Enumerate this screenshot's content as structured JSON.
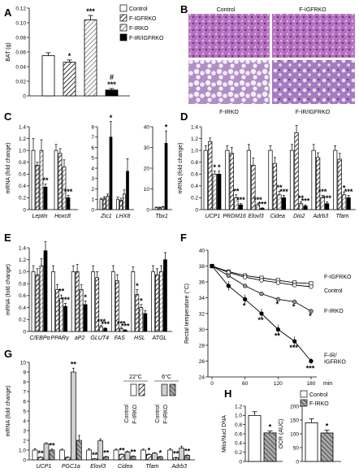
{
  "panel_letters": [
    "A",
    "B",
    "C",
    "D",
    "E",
    "F",
    "G",
    "H"
  ],
  "panel_b_labels": {
    "tl": "Control",
    "tr": "F-IGFRKO",
    "bl": "F-IRKO",
    "br": "F-IR/IGFRKO"
  },
  "chart_data": [
    {
      "id": "A",
      "type": "bar",
      "ylabel": "BAT (g)",
      "ylim": [
        0,
        0.12
      ],
      "yticks": [
        "0",
        "0.02",
        "0.04",
        "0.06",
        "0.08",
        "0.10",
        "0.12"
      ],
      "categories": [
        "Control",
        "F-IGFRKO",
        "F-IRKO",
        "F-IR/IGFRKO"
      ],
      "values": [
        0.055,
        0.046,
        0.104,
        0.008
      ],
      "errors": [
        0.004,
        0.003,
        0.006,
        0.002
      ],
      "annotations": [
        "",
        "*",
        "***",
        "#\n***"
      ],
      "legend": [
        "Control",
        "F-IGFRKO",
        "F-IRKO",
        "F-IR/IGFRKO"
      ]
    },
    {
      "id": "C",
      "type": "bar",
      "ylabel": "mRNA (fold change)",
      "subplots": [
        {
          "ylim": [
            0,
            1.4
          ],
          "yticks": [
            "0",
            "0.2",
            "0.4",
            "0.6",
            "0.8",
            "1.0",
            "1.2",
            "1.4"
          ],
          "categories": [
            "Leptin",
            "Hoxc8"
          ],
          "values": [
            [
              1.0,
              0.75,
              1.0,
              0.38
            ],
            [
              1.0,
              0.95,
              0.72,
              0.2
            ]
          ],
          "errors": [
            [
              0.2,
              0.05,
              0.18,
              0.05
            ],
            [
              0.1,
              0.08,
              0.12,
              0.04
            ]
          ],
          "stars": [
            [
              "",
              "",
              "",
              "**"
            ],
            [
              "",
              "",
              "",
              "***"
            ]
          ]
        },
        {
          "ylim": [
            0,
            8
          ],
          "yticks": [
            "0",
            "1",
            "2",
            "3",
            "4",
            "5",
            "6",
            "7",
            "8"
          ],
          "categories": [
            "Zic1",
            "LHX8"
          ],
          "values": [
            [
              1.0,
              1.1,
              1.3,
              7.0
            ],
            [
              1.0,
              0.9,
              1.5,
              3.7
            ]
          ],
          "errors": [
            [
              0.1,
              0.15,
              0.2,
              1.5
            ],
            [
              0.2,
              0.2,
              0.4,
              1.2
            ]
          ],
          "stars": [
            [
              "",
              "",
              "",
              "*"
            ],
            [
              "",
              "",
              "",
              ""
            ]
          ]
        },
        {
          "ylim": [
            0,
            40
          ],
          "yticks": [
            "0",
            "10",
            "20",
            "30",
            "40"
          ],
          "categories": [
            "Tbx1"
          ],
          "values": [
            [
              1.0,
              1.0,
              1.2,
              32
            ]
          ],
          "errors": [
            [
              0.2,
              0.2,
              0.3,
              6
            ]
          ],
          "stars": [
            [
              "",
              "",
              "",
              "*"
            ]
          ]
        }
      ]
    },
    {
      "id": "D",
      "type": "bar",
      "ylabel": "mRNA (fold change)",
      "ylim": [
        0,
        1.4
      ],
      "yticks": [
        "0",
        "0.2",
        "0.4",
        "0.6",
        "0.8",
        "1.0",
        "1.2",
        "1.4"
      ],
      "categories": [
        "UCP1",
        "PRDM16",
        "Elovl3",
        "Cidea",
        "Dio2",
        "Adrb3",
        "Tfam"
      ],
      "values": [
        [
          1.0,
          1.15,
          0.6,
          0.6
        ],
        [
          1.0,
          0.95,
          0.2,
          0.08
        ],
        [
          1.0,
          0.75,
          0.08,
          0.02
        ],
        [
          1.0,
          0.78,
          0.25,
          0.2
        ],
        [
          1.0,
          1.3,
          0.1,
          0.06
        ],
        [
          1.0,
          0.88,
          0.2,
          0.1
        ],
        [
          1.0,
          0.85,
          0.25,
          0.2
        ]
      ],
      "errors": [
        [
          0.08,
          0.06,
          0.05,
          0.05
        ],
        [
          0.08,
          0.1,
          0.05,
          0.02
        ],
        [
          0.1,
          0.12,
          0.02,
          0.01
        ],
        [
          0.08,
          0.1,
          0.06,
          0.04
        ],
        [
          0.1,
          0.12,
          0.03,
          0.02
        ],
        [
          0.1,
          0.08,
          0.04,
          0.03
        ],
        [
          0.08,
          0.1,
          0.05,
          0.04
        ]
      ],
      "stars": [
        [
          "",
          "",
          "*",
          "*"
        ],
        [
          "",
          "",
          "**",
          "***"
        ],
        [
          "",
          "",
          "***",
          "***"
        ],
        [
          "",
          "",
          "**",
          "***"
        ],
        [
          "",
          "",
          "**",
          "***"
        ],
        [
          "",
          "",
          "***",
          "***"
        ],
        [
          "",
          "",
          "*",
          "***"
        ]
      ]
    },
    {
      "id": "E",
      "type": "bar",
      "ylabel": "mRNA (fold change)",
      "ylim": [
        0,
        1.4
      ],
      "yticks": [
        "0",
        "0.2",
        "0.4",
        "0.6",
        "0.8",
        "1.0",
        "1.2",
        "1.4"
      ],
      "categories": [
        "C/EBPα",
        "PPARγ",
        "aP2",
        "GLUT4",
        "FAS",
        "HSL",
        "ATGL"
      ],
      "values": [
        [
          1.0,
          0.95,
          1.1,
          1.35
        ],
        [
          1.0,
          0.7,
          0.55,
          0.42
        ],
        [
          1.0,
          1.0,
          0.7,
          0.45
        ],
        [
          1.0,
          0.9,
          0.08,
          0.05
        ],
        [
          1.0,
          0.85,
          0.05,
          0.02
        ],
        [
          1.0,
          0.62,
          0.4,
          0.3
        ],
        [
          1.0,
          0.95,
          1.0,
          1.2
        ]
      ],
      "errors": [
        [
          0.1,
          0.1,
          0.12,
          0.15
        ],
        [
          0.1,
          0.08,
          0.06,
          0.05
        ],
        [
          0.1,
          0.12,
          0.08,
          0.06
        ],
        [
          0.1,
          0.1,
          0.02,
          0.01
        ],
        [
          0.1,
          0.1,
          0.02,
          0.01
        ],
        [
          0.08,
          0.08,
          0.05,
          0.05
        ],
        [
          0.1,
          0.1,
          0.1,
          0.12
        ]
      ],
      "stars": [
        [
          "",
          "",
          "",
          ""
        ],
        [
          "",
          "",
          "**",
          "***"
        ],
        [
          "",
          "",
          "",
          "*"
        ],
        [
          "",
          "",
          "***",
          "***"
        ],
        [
          "",
          "",
          "***",
          "***"
        ],
        [
          "",
          "*",
          "*",
          ""
        ],
        [
          "",
          "",
          "",
          ""
        ]
      ]
    },
    {
      "id": "F",
      "type": "line",
      "ylabel": "Rectal temperature (°C)",
      "xlabel": "min",
      "ylim": [
        24,
        40
      ],
      "yticks": [
        "24",
        "26",
        "28",
        "30",
        "32",
        "34",
        "36",
        "38",
        "40"
      ],
      "xlim": [
        0,
        180
      ],
      "xticks": [
        "0",
        "60",
        "120",
        "180"
      ],
      "x": [
        0,
        30,
        60,
        90,
        120,
        150,
        180
      ],
      "series": [
        {
          "name": "F-IGFRKO",
          "values": [
            38.0,
            37.3,
            36.8,
            36.5,
            36.2,
            35.9,
            35.8
          ],
          "marker": "square-open"
        },
        {
          "name": "Control",
          "values": [
            38.0,
            37.2,
            36.6,
            36.2,
            35.9,
            35.6,
            35.4
          ],
          "marker": "circle-open"
        },
        {
          "name": "F-IRKO",
          "values": [
            38.0,
            36.8,
            35.5,
            34.5,
            33.8,
            33.5,
            32.3
          ],
          "marker": "circle-gray"
        },
        {
          "name": "F-IR/IGFRKO",
          "values": [
            38.0,
            35.5,
            33.8,
            32.0,
            30.0,
            28.5,
            26.0
          ],
          "marker": "circle-filled"
        }
      ],
      "stars": [
        {
          "x": 60,
          "text": "*"
        },
        {
          "x": 90,
          "text": "**"
        },
        {
          "x": 120,
          "text": "**"
        },
        {
          "x": 150,
          "text": "***"
        },
        {
          "x": 180,
          "text": "***"
        },
        {
          "x": 120,
          "text": "*"
        },
        {
          "x": 150,
          "text": "*"
        },
        {
          "x": 180,
          "text": "*"
        }
      ],
      "line_labels": [
        "F-IGFRKO",
        "Control",
        "F-IRKO",
        "F-IR/\nIGFRKO"
      ]
    },
    {
      "id": "G",
      "type": "bar",
      "ylabel": "mRNA (fold change)",
      "ylim": [
        0,
        10
      ],
      "yticks": [
        "0",
        "1.0",
        "2",
        "3",
        "4",
        "5",
        "6",
        "7",
        "8",
        "9",
        "10"
      ],
      "categories": [
        "UCP1",
        "PGC1a",
        "Elovl3",
        "Cidea",
        "Tfam",
        "Adrb3"
      ],
      "groups": [
        "Control 22°C",
        "F-IRKO 22°C",
        "Control 6°C",
        "F-IRKO 6°C"
      ],
      "group_headers": [
        "22°C",
        "6°C"
      ],
      "group_labels": [
        "Control",
        "F-IRKO",
        "Control",
        "F-IRKO"
      ],
      "values": [
        [
          1.0,
          0.25,
          1.65,
          1.0
        ],
        [
          1.0,
          0.25,
          9.0,
          2.0
        ],
        [
          1.0,
          0.1,
          1.95,
          0.3
        ],
        [
          1.0,
          0.55,
          0.8,
          0.35
        ],
        [
          1.0,
          0.55,
          0.68,
          0.3
        ],
        [
          1.0,
          0.2,
          1.2,
          0.45
        ]
      ],
      "errors": [
        [
          0.15,
          0.05,
          0.1,
          0.1
        ],
        [
          0.1,
          0.05,
          0.4,
          0.5
        ],
        [
          0.15,
          0.02,
          0.2,
          0.05
        ],
        [
          0.1,
          0.05,
          0.1,
          0.05
        ],
        [
          0.1,
          0.05,
          0.05,
          0.05
        ],
        [
          0.15,
          0.05,
          0.2,
          0.05
        ]
      ],
      "stars": [
        [
          "",
          "**",
          "",
          "**"
        ],
        [
          "",
          "",
          "**",
          ""
        ],
        [
          "",
          "**",
          "",
          "**"
        ],
        [
          "",
          "**",
          "",
          "**"
        ],
        [
          "",
          "*",
          "",
          "*"
        ],
        [
          "",
          "**",
          "",
          "**"
        ]
      ]
    },
    {
      "id": "H",
      "type": "bar",
      "legend": [
        "Control",
        "F-IRKO"
      ],
      "subplots": [
        {
          "ylabel": "Mito/Nucl DNA",
          "ylim": [
            0,
            1.2
          ],
          "yticks": [
            "0",
            "0.2",
            "0.4",
            "0.6",
            "0.8",
            "1.0",
            "1.2"
          ],
          "values": [
            1.0,
            0.62
          ],
          "errors": [
            0.08,
            0.04
          ],
          "stars": [
            "",
            "*"
          ]
        },
        {
          "ylabel": "OCR (AUC)",
          "ylim": [
            0,
            200
          ],
          "yticks": [
            "0",
            "50",
            "100",
            "150",
            "200"
          ],
          "values": [
            140,
            103
          ],
          "errors": [
            14,
            10
          ],
          "stars": [
            "",
            "*"
          ]
        }
      ]
    }
  ]
}
